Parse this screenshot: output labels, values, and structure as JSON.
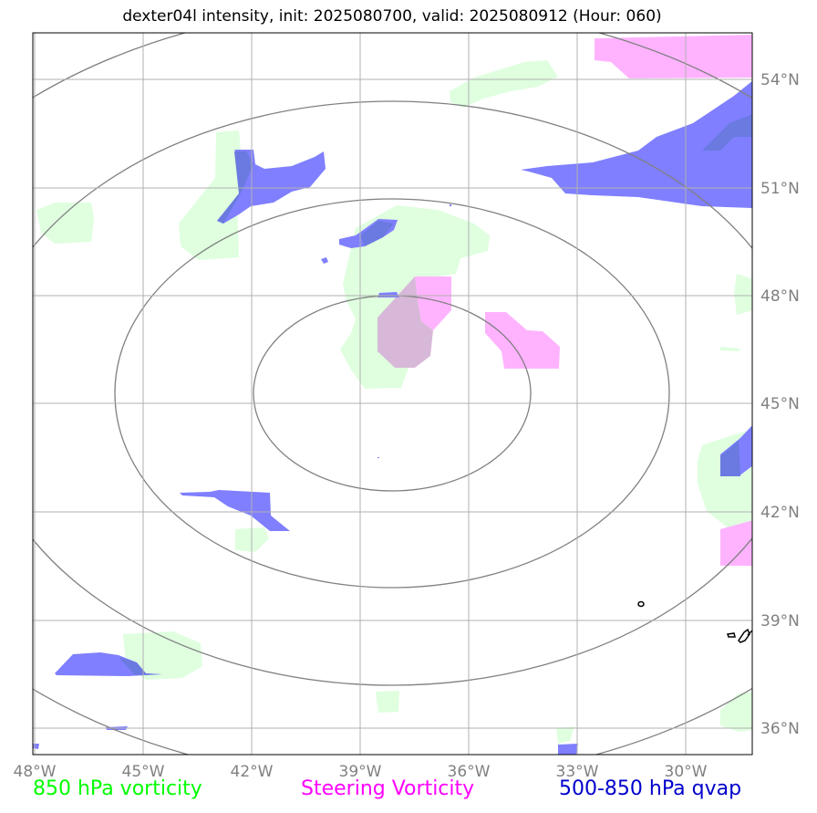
{
  "title": "dexter04l intensity, init: 2025080700, valid: 2025080912 (Hour: 060)",
  "longitude_labels": [
    "48°W",
    "45°W",
    "42°W",
    "39°W",
    "36°W",
    "33°W",
    "30°W"
  ],
  "latitude_labels": [
    "54°N",
    "51°N",
    "48°N",
    "45°N",
    "42°N",
    "39°N",
    "36°N"
  ],
  "legend": [
    {
      "label": "850 hPa vorticity",
      "color": "#00ff00"
    },
    {
      "label": "Steering Vorticity",
      "color": "#ff00ff"
    },
    {
      "label": "500-850 hPa qvap",
      "color": "#0000cc"
    }
  ],
  "colors": {
    "vorticity_fill": "#dfffdf",
    "steering_fill": "#ffb3ff",
    "qvap_fill": "#7f7fff",
    "overlap_fill": "#d8b8d8",
    "overlap_qvap": "#6a7ae0",
    "grid": "#b0b0b0",
    "range_rings": "#808080"
  }
}
